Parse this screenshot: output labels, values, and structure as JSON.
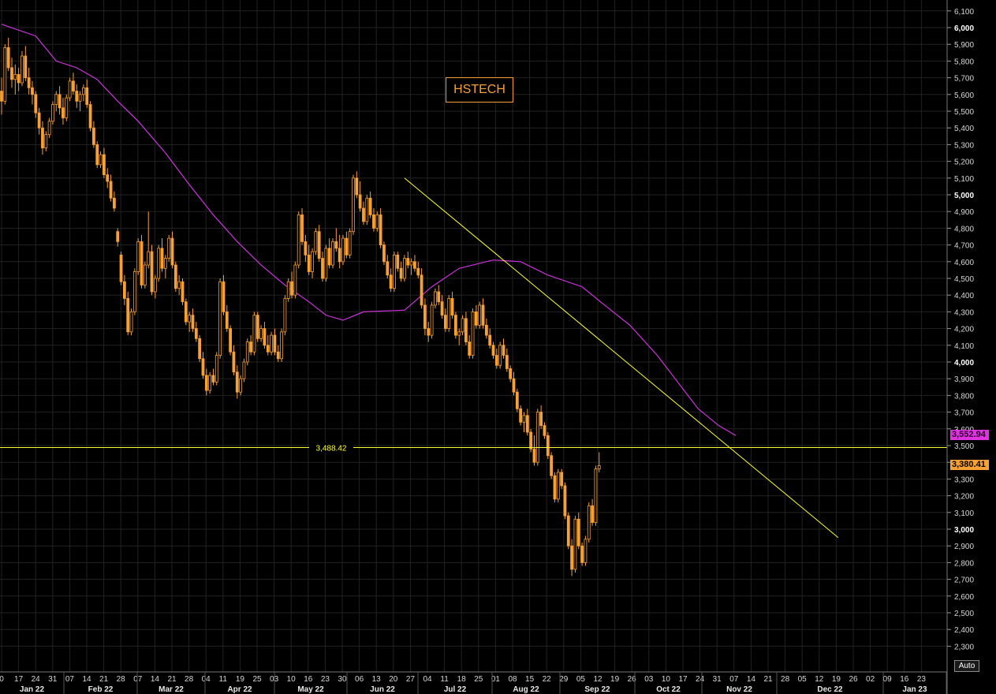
{
  "chart_data": {
    "type": "candlestick",
    "title": "HSTECH",
    "ylim": [
      2200,
      6150
    ],
    "y_ticks": [
      2300,
      2400,
      2500,
      2600,
      2700,
      2800,
      2900,
      3000,
      3100,
      3200,
      3300,
      3400,
      3500,
      3600,
      3700,
      3800,
      3900,
      4000,
      4100,
      4200,
      4300,
      4400,
      4500,
      4600,
      4700,
      4800,
      4900,
      5000,
      5100,
      5200,
      5300,
      5400,
      5500,
      5600,
      5700,
      5800,
      5900,
      6000,
      6100
    ],
    "y_tick_labels": [
      "2,300",
      "2,400",
      "2,500",
      "2,600",
      "2,700",
      "2,800",
      "2,900",
      "3,000",
      "3,100",
      "3,200",
      "3,300",
      "3,400",
      "3,500",
      "3,600",
      "3,700",
      "3,800",
      "3,900",
      "4,000",
      "4,100",
      "4,200",
      "4,300",
      "4,400",
      "4,500",
      "4,600",
      "4,700",
      "4,800",
      "4,900",
      "5,000",
      "5,100",
      "5,200",
      "5,300",
      "5,400",
      "5,500",
      "5,600",
      "5,700",
      "5,800",
      "5,900",
      "6,000",
      "6,100"
    ],
    "y_major_ticks": [
      3000,
      4000,
      5000,
      6000
    ],
    "x_day_ticks": [
      "0",
      "17",
      "24",
      "31",
      "07",
      "14",
      "21",
      "28",
      "07",
      "14",
      "21",
      "28",
      "04",
      "11",
      "19",
      "25",
      "03",
      "10",
      "16",
      "23",
      "30",
      "06",
      "13",
      "20",
      "27",
      "04",
      "11",
      "18",
      "25",
      "01",
      "08",
      "15",
      "22",
      "29",
      "05",
      "12",
      "19",
      "26",
      "03",
      "10",
      "17",
      "24",
      "31",
      "07",
      "14",
      "21",
      "28",
      "05",
      "12",
      "19",
      "26",
      "02",
      "09",
      "16",
      "23"
    ],
    "x_months": [
      "Jan 22",
      "Feb 22",
      "Mar 22",
      "Apr 22",
      "May 22",
      "Jun 22",
      "Jul 22",
      "Aug 22",
      "Sep 22",
      "Oct 22",
      "Nov 22",
      "Dec 22",
      "Jan 23"
    ],
    "horizontal_line": {
      "value": 3488.42,
      "label": "3,488.42"
    },
    "moving_average_last": "3,552.94",
    "last_price": "3,380.41",
    "colors": {
      "candle": "#f7a035",
      "moving_average": "#cc33dd",
      "trendline": "#ffff33",
      "grid": "#222222",
      "background": "#000000"
    },
    "trendline": {
      "start_index": 118,
      "start_value": 5100,
      "end_index": 245,
      "end_value": 2950
    },
    "moving_average": [
      [
        0,
        6020
      ],
      [
        10,
        5950
      ],
      [
        16,
        5800
      ],
      [
        22,
        5760
      ],
      [
        28,
        5690
      ],
      [
        34,
        5560
      ],
      [
        40,
        5440
      ],
      [
        48,
        5250
      ],
      [
        55,
        5060
      ],
      [
        62,
        4880
      ],
      [
        69,
        4720
      ],
      [
        76,
        4580
      ],
      [
        83,
        4460
      ],
      [
        90,
        4360
      ],
      [
        95,
        4280
      ],
      [
        100,
        4250
      ],
      [
        106,
        4300
      ],
      [
        118,
        4310
      ],
      [
        126,
        4450
      ],
      [
        134,
        4560
      ],
      [
        144,
        4610
      ],
      [
        152,
        4600
      ],
      [
        160,
        4520
      ],
      [
        170,
        4450
      ],
      [
        176,
        4350
      ],
      [
        184,
        4220
      ],
      [
        192,
        4040
      ],
      [
        198,
        3880
      ],
      [
        204,
        3720
      ],
      [
        210,
        3620
      ],
      [
        215,
        3560
      ]
    ],
    "ohlc": [
      [
        5620,
        5700,
        5480,
        5560
      ],
      [
        5560,
        5900,
        5540,
        5880
      ],
      [
        5880,
        5940,
        5740,
        5760
      ],
      [
        5760,
        5820,
        5640,
        5690
      ],
      [
        5690,
        5780,
        5600,
        5720
      ],
      [
        5720,
        5760,
        5620,
        5670
      ],
      [
        5670,
        5860,
        5650,
        5830
      ],
      [
        5830,
        5890,
        5680,
        5700
      ],
      [
        5700,
        5760,
        5600,
        5640
      ],
      [
        5640,
        5680,
        5540,
        5600
      ],
      [
        5600,
        5620,
        5460,
        5490
      ],
      [
        5490,
        5520,
        5360,
        5400
      ],
      [
        5400,
        5440,
        5240,
        5280
      ],
      [
        5280,
        5380,
        5260,
        5360
      ],
      [
        5360,
        5460,
        5340,
        5440
      ],
      [
        5440,
        5560,
        5420,
        5540
      ],
      [
        5540,
        5620,
        5500,
        5600
      ],
      [
        5600,
        5650,
        5480,
        5520
      ],
      [
        5520,
        5580,
        5420,
        5460
      ],
      [
        5460,
        5600,
        5440,
        5580
      ],
      [
        5580,
        5700,
        5560,
        5680
      ],
      [
        5680,
        5730,
        5600,
        5620
      ],
      [
        5620,
        5660,
        5520,
        5560
      ],
      [
        5560,
        5620,
        5500,
        5600
      ],
      [
        5600,
        5660,
        5560,
        5640
      ],
      [
        5640,
        5690,
        5520,
        5540
      ],
      [
        5540,
        5560,
        5380,
        5400
      ],
      [
        5400,
        5440,
        5280,
        5300
      ],
      [
        5300,
        5320,
        5160,
        5180
      ],
      [
        5180,
        5260,
        5160,
        5240
      ],
      [
        5240,
        5280,
        5100,
        5120
      ],
      [
        5120,
        5160,
        5040,
        5080
      ],
      [
        5080,
        5120,
        4960,
        4980
      ],
      [
        4980,
        5020,
        4900,
        4920
      ],
      [
        4780,
        4800,
        4690,
        4720
      ],
      [
        4640,
        4660,
        4460,
        4480
      ],
      [
        4480,
        4520,
        4340,
        4380
      ],
      [
        4380,
        4420,
        4160,
        4180
      ],
      [
        4180,
        4320,
        4160,
        4300
      ],
      [
        4300,
        4560,
        4280,
        4540
      ],
      [
        4540,
        4740,
        4520,
        4720
      ],
      [
        4720,
        4760,
        4440,
        4460
      ],
      [
        4460,
        4600,
        4440,
        4580
      ],
      [
        4580,
        4900,
        4560,
        4660
      ],
      [
        4660,
        4700,
        4400,
        4420
      ],
      [
        4420,
        4520,
        4380,
        4500
      ],
      [
        4500,
        4700,
        4480,
        4680
      ],
      [
        4680,
        4740,
        4540,
        4560
      ],
      [
        4560,
        4640,
        4500,
        4620
      ],
      [
        4620,
        4760,
        4600,
        4740
      ],
      [
        4740,
        4780,
        4560,
        4580
      ],
      [
        4580,
        4600,
        4420,
        4440
      ],
      [
        4440,
        4520,
        4400,
        4480
      ],
      [
        4480,
        4500,
        4340,
        4360
      ],
      [
        4360,
        4380,
        4220,
        4240
      ],
      [
        4240,
        4300,
        4180,
        4280
      ],
      [
        4280,
        4320,
        4180,
        4200
      ],
      [
        4200,
        4240,
        4120,
        4140
      ],
      [
        4140,
        4160,
        4000,
        4020
      ],
      [
        4020,
        4060,
        3900,
        3920
      ],
      [
        3920,
        3960,
        3800,
        3830
      ],
      [
        3830,
        3940,
        3810,
        3920
      ],
      [
        3920,
        3960,
        3860,
        3880
      ],
      [
        3880,
        4060,
        3860,
        4040
      ],
      [
        4040,
        4500,
        4020,
        4480
      ],
      [
        4480,
        4520,
        4280,
        4300
      ],
      [
        4300,
        4340,
        4180,
        4200
      ],
      [
        4200,
        4220,
        4040,
        4060
      ],
      [
        4060,
        4100,
        3920,
        3940
      ],
      [
        3940,
        3980,
        3780,
        3820
      ],
      [
        3820,
        3920,
        3800,
        3900
      ],
      [
        3900,
        4020,
        3880,
        4000
      ],
      [
        4000,
        4140,
        3980,
        4120
      ],
      [
        4120,
        4160,
        4040,
        4060
      ],
      [
        4060,
        4300,
        4040,
        4280
      ],
      [
        4280,
        4300,
        4120,
        4140
      ],
      [
        4140,
        4220,
        4120,
        4200
      ],
      [
        4200,
        4240,
        4080,
        4100
      ],
      [
        4100,
        4160,
        4040,
        4060
      ],
      [
        4060,
        4180,
        4040,
        4160
      ],
      [
        4160,
        4200,
        4040,
        4060
      ],
      [
        4060,
        4100,
        4000,
        4020
      ],
      [
        4020,
        4200,
        4000,
        4180
      ],
      [
        4180,
        4400,
        4160,
        4380
      ],
      [
        4380,
        4500,
        4360,
        4480
      ],
      [
        4480,
        4540,
        4380,
        4400
      ],
      [
        4400,
        4600,
        4380,
        4580
      ],
      [
        4580,
        4900,
        4560,
        4880
      ],
      [
        4880,
        4920,
        4700,
        4720
      ],
      [
        4720,
        4760,
        4600,
        4640
      ],
      [
        4640,
        4700,
        4520,
        4540
      ],
      [
        4540,
        4680,
        4500,
        4660
      ],
      [
        4660,
        4800,
        4640,
        4780
      ],
      [
        4780,
        4820,
        4600,
        4620
      ],
      [
        4620,
        4660,
        4480,
        4500
      ],
      [
        4500,
        4700,
        4480,
        4680
      ],
      [
        4680,
        4740,
        4560,
        4580
      ],
      [
        4580,
        4740,
        4560,
        4720
      ],
      [
        4720,
        4800,
        4660,
        4680
      ],
      [
        4680,
        4760,
        4560,
        4600
      ],
      [
        4600,
        4760,
        4580,
        4740
      ],
      [
        4740,
        4780,
        4620,
        4640
      ],
      [
        4640,
        4800,
        4620,
        4780
      ],
      [
        4780,
        5120,
        4760,
        5100
      ],
      [
        5100,
        5140,
        4980,
        5000
      ],
      [
        5000,
        5080,
        4900,
        4920
      ],
      [
        4920,
        4960,
        4820,
        4840
      ],
      [
        4840,
        5000,
        4820,
        4980
      ],
      [
        4980,
        5020,
        4860,
        4880
      ],
      [
        4880,
        4920,
        4780,
        4800
      ],
      [
        4800,
        4900,
        4780,
        4880
      ],
      [
        4880,
        4920,
        4680,
        4700
      ],
      [
        4700,
        4720,
        4580,
        4600
      ],
      [
        4600,
        4640,
        4500,
        4520
      ],
      [
        4520,
        4560,
        4420,
        4440
      ],
      [
        4440,
        4660,
        4420,
        4640
      ],
      [
        4640,
        4660,
        4540,
        4560
      ],
      [
        4560,
        4600,
        4480,
        4500
      ],
      [
        4500,
        4640,
        4480,
        4620
      ],
      [
        4620,
        4660,
        4560,
        4580
      ],
      [
        4580,
        4620,
        4520,
        4600
      ],
      [
        4600,
        4640,
        4540,
        4560
      ],
      [
        4560,
        4600,
        4500,
        4520
      ],
      [
        4520,
        4560,
        4320,
        4340
      ],
      [
        4340,
        4380,
        4160,
        4200
      ],
      [
        4200,
        4240,
        4120,
        4160
      ],
      [
        4160,
        4360,
        4140,
        4340
      ],
      [
        4340,
        4440,
        4320,
        4420
      ],
      [
        4420,
        4460,
        4340,
        4360
      ],
      [
        4360,
        4400,
        4260,
        4280
      ],
      [
        4280,
        4320,
        4180,
        4200
      ],
      [
        4200,
        4400,
        4180,
        4380
      ],
      [
        4380,
        4420,
        4260,
        4280
      ],
      [
        4280,
        4300,
        4140,
        4160
      ],
      [
        4160,
        4200,
        4100,
        4180
      ],
      [
        4180,
        4280,
        4160,
        4260
      ],
      [
        4260,
        4300,
        4100,
        4120
      ],
      [
        4120,
        4160,
        4020,
        4040
      ],
      [
        4040,
        4320,
        4020,
        4300
      ],
      [
        4300,
        4340,
        4200,
        4220
      ],
      [
        4220,
        4360,
        4200,
        4340
      ],
      [
        4340,
        4380,
        4200,
        4220
      ],
      [
        4220,
        4260,
        4140,
        4160
      ],
      [
        4160,
        4200,
        4080,
        4100
      ],
      [
        4100,
        4120,
        4020,
        4040
      ],
      [
        4040,
        4080,
        3960,
        3980
      ],
      [
        3980,
        4120,
        3960,
        4100
      ],
      [
        4100,
        4140,
        4020,
        4040
      ],
      [
        4040,
        4080,
        3940,
        3960
      ],
      [
        3960,
        3980,
        3880,
        3900
      ],
      [
        3900,
        3940,
        3800,
        3820
      ],
      [
        3820,
        3840,
        3700,
        3720
      ],
      [
        3720,
        3740,
        3620,
        3640
      ],
      [
        3640,
        3700,
        3580,
        3680
      ],
      [
        3680,
        3720,
        3560,
        3580
      ],
      [
        3580,
        3600,
        3460,
        3480
      ],
      [
        3480,
        3560,
        3380,
        3400
      ],
      [
        3400,
        3720,
        3380,
        3700
      ],
      [
        3700,
        3740,
        3600,
        3620
      ],
      [
        3620,
        3640,
        3540,
        3560
      ],
      [
        3560,
        3580,
        3420,
        3440
      ],
      [
        3440,
        3460,
        3300,
        3320
      ],
      [
        3320,
        3340,
        3160,
        3180
      ],
      [
        3180,
        3360,
        3160,
        3340
      ],
      [
        3340,
        3360,
        3240,
        3260
      ],
      [
        3260,
        3280,
        3060,
        3080
      ],
      [
        3080,
        3100,
        2880,
        2900
      ],
      [
        2900,
        2940,
        2720,
        2760
      ],
      [
        2760,
        3080,
        2740,
        3060
      ],
      [
        3060,
        3100,
        2880,
        2900
      ],
      [
        2900,
        2920,
        2780,
        2800
      ],
      [
        2800,
        2960,
        2780,
        2940
      ],
      [
        2940,
        3160,
        2920,
        3140
      ],
      [
        3140,
        3180,
        3020,
        3040
      ],
      [
        3040,
        3380,
        3020,
        3360
      ],
      [
        3360,
        3460,
        3340,
        3380
      ]
    ]
  }
}
